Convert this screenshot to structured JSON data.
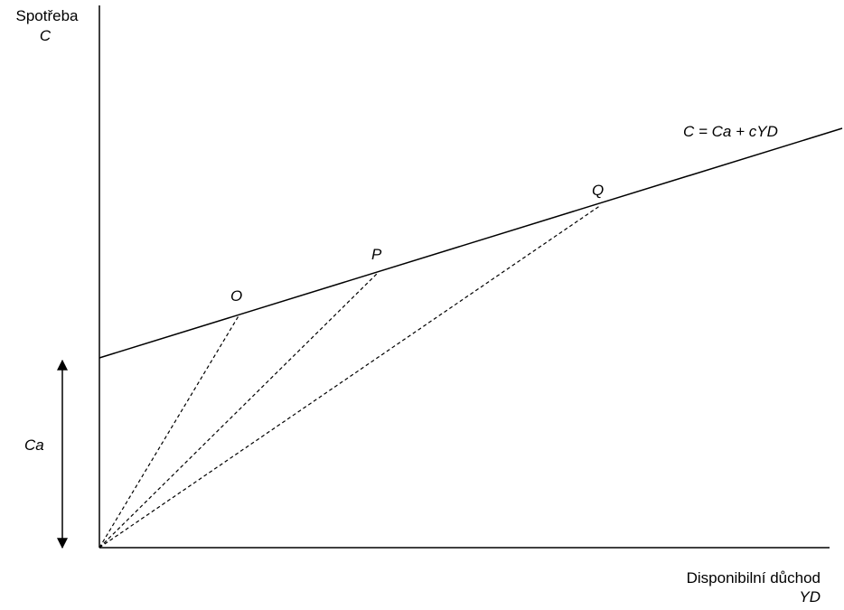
{
  "axes": {
    "y_label_line1": "Spotřeba",
    "y_label_line2": "C",
    "x_label_line1": "Disponibilní důchod",
    "x_label_line2": "YD"
  },
  "consumption_function": {
    "equation_label": "C = Ca + cYD"
  },
  "points": {
    "o_label": "O",
    "p_label": "P",
    "q_label": "Q"
  },
  "autonomous_consumption": {
    "label": "Ca"
  },
  "colors": {
    "line": "#000000",
    "background": "#ffffff"
  }
}
